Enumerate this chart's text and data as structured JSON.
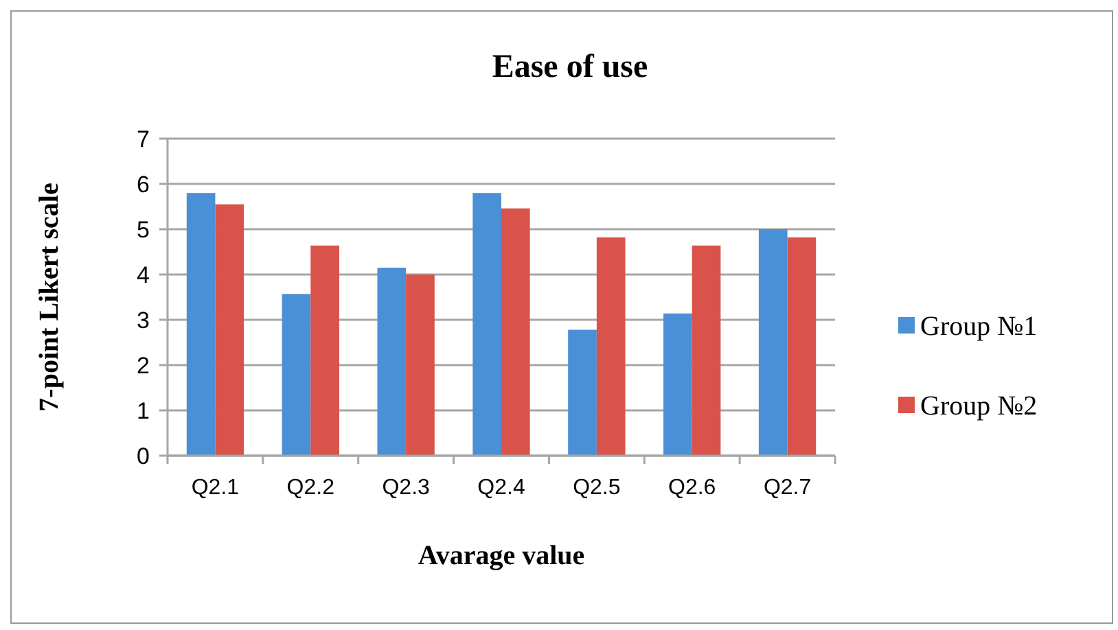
{
  "chart_data": {
    "type": "bar",
    "title": "Ease of use",
    "xlabel": "Avarage value",
    "ylabel": "7-point Likert scale",
    "categories": [
      "Q2.1",
      "Q2.2",
      "Q2.3",
      "Q2.4",
      "Q2.5",
      "Q2.6",
      "Q2.7"
    ],
    "series": [
      {
        "name": "Group №1",
        "color": "#4a90d6",
        "values": [
          5.8,
          3.57,
          4.15,
          5.8,
          2.78,
          3.14,
          5.0
        ]
      },
      {
        "name": "Group №2",
        "color": "#d9534a",
        "values": [
          5.55,
          4.64,
          4.0,
          5.46,
          4.82,
          4.64,
          4.82
        ]
      }
    ],
    "ylim": [
      0,
      7
    ],
    "yticks": [
      0,
      1,
      2,
      3,
      4,
      5,
      6,
      7
    ],
    "grid": "y",
    "legend": "right"
  }
}
